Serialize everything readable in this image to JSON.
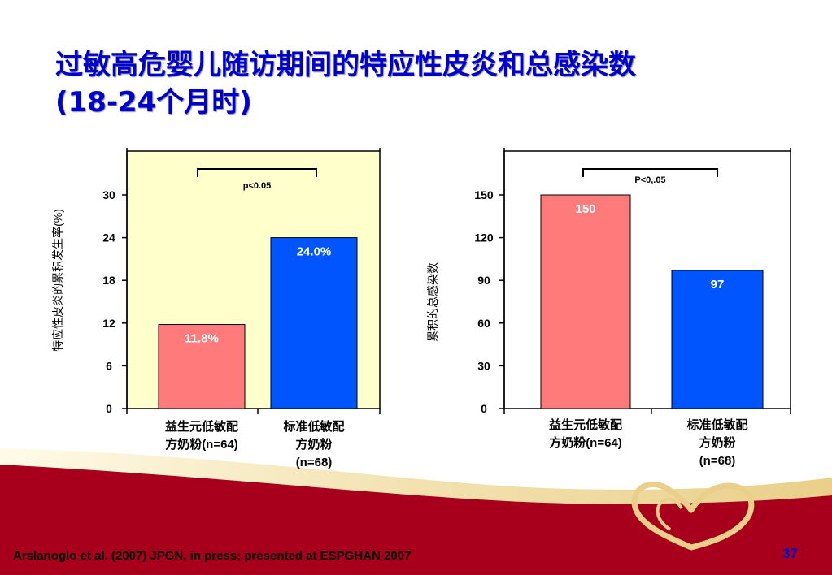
{
  "slide": {
    "title_line1": "过敏高危婴儿随访期间的特应性皮炎和总感染数",
    "title_line2": "(18-24个月时)",
    "footer": "Arslanoglo et al. (2007) JPGN, in press; presented at ESPGHAN 2007",
    "page_number": "37",
    "colors": {
      "title": "#0000cc",
      "bar_probiotic": "#ff7b7b",
      "bar_standard": "#0055ff",
      "left_plot_bg": "#ffffcc",
      "footer_band": "#a8001c"
    }
  },
  "chart_data": [
    {
      "type": "bar",
      "categories": [
        "益生元低敏配方奶粉(n=64)",
        "标准低敏配方奶粉(n=68)"
      ],
      "category_label_lines": [
        [
          "益生元低敏配",
          "方奶粉(n=64)"
        ],
        [
          "标准低敏配",
          "方奶粉",
          "(n=68)"
        ]
      ],
      "values": [
        11.8,
        24.0
      ],
      "data_labels": [
        "11.8%",
        "24.0%"
      ],
      "bar_colors": [
        "#ff7b7b",
        "#0055ff"
      ],
      "ylabel": "特应性皮炎的累积发生率(%)",
      "ylim": [
        0,
        30
      ],
      "yticks": [
        "0",
        "6",
        "12",
        "18",
        "24",
        "30"
      ],
      "annotation": "p<0.05",
      "plot_background": "#ffffcc",
      "grid": false
    },
    {
      "type": "bar",
      "categories": [
        "益生元低敏配方奶粉(n=64)",
        "标准低敏配方奶粉(n=68)"
      ],
      "category_label_lines": [
        [
          "益生元低敏配",
          "方奶粉(n=64)"
        ],
        [
          "标准低敏配",
          "方奶粉",
          "(n=68)"
        ]
      ],
      "values": [
        150,
        97
      ],
      "data_labels": [
        "150",
        "97"
      ],
      "bar_colors": [
        "#ff7b7b",
        "#0055ff"
      ],
      "ylabel": "累积的总感染数",
      "ylim": [
        0,
        150
      ],
      "yticks": [
        "0",
        "30",
        "60",
        "90",
        "120",
        "150"
      ],
      "annotation": "P<0,.05",
      "plot_background": "#ffffff",
      "grid": false
    }
  ]
}
